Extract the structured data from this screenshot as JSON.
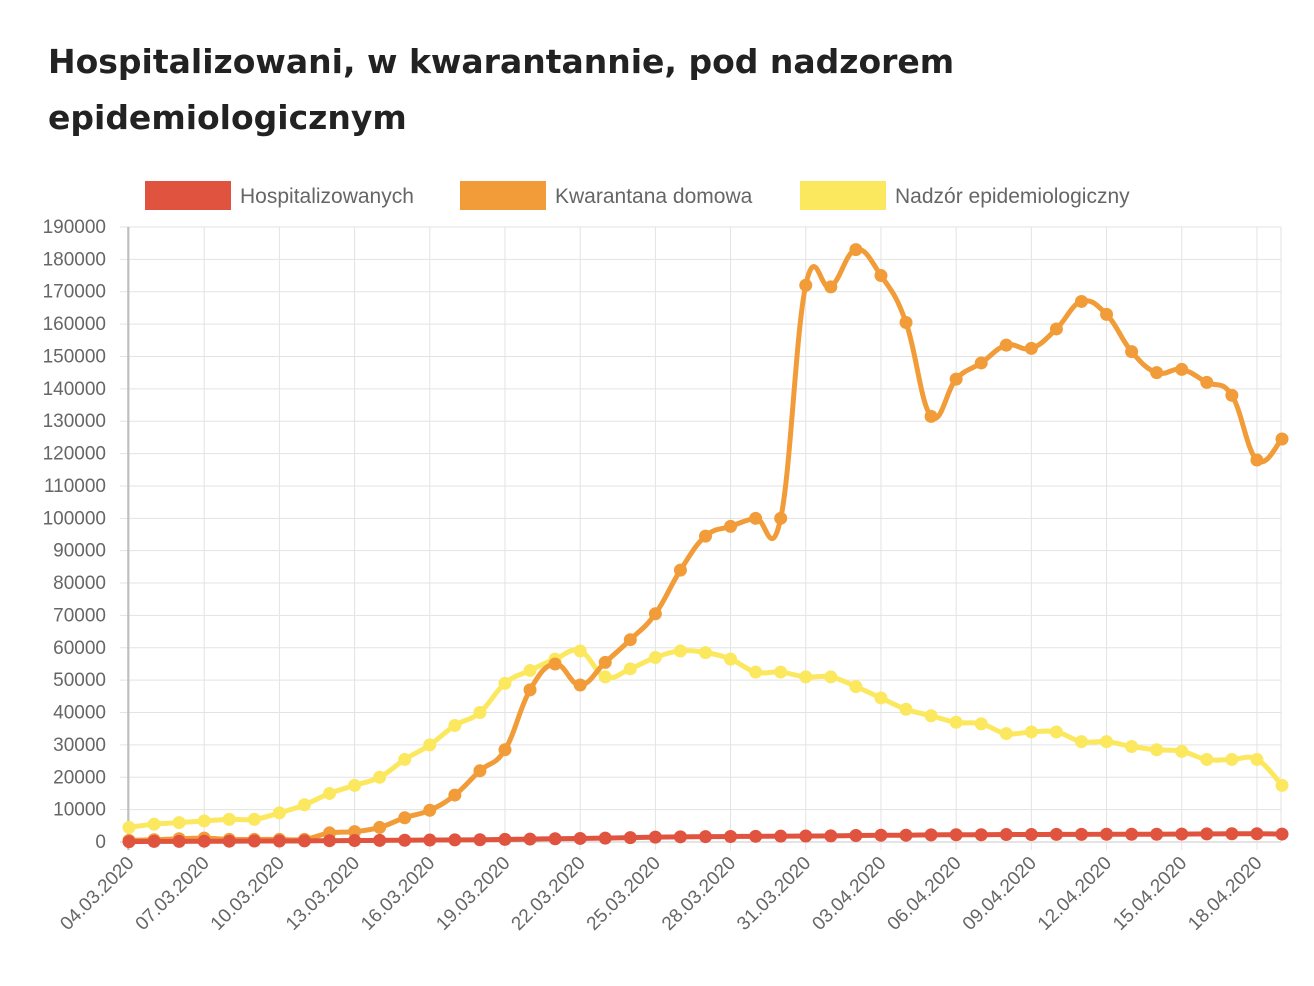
{
  "chart_data": {
    "type": "line",
    "title_lines": [
      "Hospitalizowani, w kwarantannie, pod nadzorem",
      "epidemiologicznym"
    ],
    "legend_position": "top",
    "grid": true,
    "ylim": [
      0,
      190000
    ],
    "y_ticks": [
      0,
      10000,
      20000,
      30000,
      40000,
      50000,
      60000,
      70000,
      80000,
      90000,
      100000,
      110000,
      120000,
      130000,
      140000,
      150000,
      160000,
      170000,
      180000,
      190000
    ],
    "x": [
      "04.03.2020",
      "05.03.2020",
      "06.03.2020",
      "07.03.2020",
      "08.03.2020",
      "09.03.2020",
      "10.03.2020",
      "11.03.2020",
      "12.03.2020",
      "13.03.2020",
      "14.03.2020",
      "15.03.2020",
      "16.03.2020",
      "17.03.2020",
      "18.03.2020",
      "19.03.2020",
      "20.03.2020",
      "21.03.2020",
      "22.03.2020",
      "23.03.2020",
      "24.03.2020",
      "25.03.2020",
      "26.03.2020",
      "27.03.2020",
      "28.03.2020",
      "29.03.2020",
      "30.03.2020",
      "31.03.2020",
      "01.04.2020",
      "02.04.2020",
      "03.04.2020",
      "04.04.2020",
      "05.04.2020",
      "06.04.2020",
      "07.04.2020",
      "08.04.2020",
      "09.04.2020",
      "10.04.2020",
      "11.04.2020",
      "12.04.2020",
      "13.04.2020",
      "14.04.2020",
      "15.04.2020",
      "16.04.2020",
      "17.04.2020",
      "18.04.2020",
      "19.04.2020"
    ],
    "x_tick_labels": [
      "04.03.2020",
      "07.03.2020",
      "10.03.2020",
      "13.03.2020",
      "16.03.2020",
      "19.03.2020",
      "22.03.2020",
      "25.03.2020",
      "28.03.2020",
      "31.03.2020",
      "03.04.2020",
      "06.04.2020",
      "09.04.2020",
      "12.04.2020",
      "15.04.2020",
      "18.04.2020"
    ],
    "series": [
      {
        "name": "Hospitalizowanych",
        "color": "#e0533f",
        "values": [
          100,
          200,
          200,
          250,
          250,
          300,
          300,
          350,
          400,
          450,
          500,
          550,
          600,
          650,
          700,
          800,
          900,
          1000,
          1100,
          1200,
          1350,
          1500,
          1600,
          1650,
          1700,
          1750,
          1800,
          1850,
          1900,
          2000,
          2100,
          2100,
          2200,
          2250,
          2250,
          2300,
          2300,
          2350,
          2350,
          2400,
          2400,
          2400,
          2450,
          2500,
          2550,
          2550,
          2450
        ]
      },
      {
        "name": "Kwarantana domowa",
        "color": "#f19c38",
        "values": [
          500,
          700,
          1000,
          1200,
          800,
          800,
          800,
          800,
          2800,
          3200,
          4500,
          7500,
          9800,
          14500,
          22000,
          28500,
          47000,
          55000,
          48500,
          55500,
          62500,
          70500,
          84000,
          94500,
          97500,
          100000,
          100000,
          172000,
          171500,
          183000,
          175000,
          160500,
          131500,
          143000,
          148000,
          153500,
          152500,
          158500,
          167000,
          163000,
          151500,
          145000,
          146000,
          142000,
          138000,
          118000,
          124500
        ]
      },
      {
        "name": "Nadzór epidemiologiczny",
        "color": "#fbe85f",
        "values": [
          4500,
          5500,
          6000,
          6500,
          7000,
          7000,
          9000,
          11500,
          15000,
          17500,
          20000,
          25500,
          30000,
          36000,
          40000,
          49000,
          53000,
          56500,
          59000,
          51000,
          53500,
          57000,
          59000,
          58500,
          56500,
          52500,
          52500,
          51000,
          51000,
          48000,
          44500,
          41000,
          39000,
          37000,
          36500,
          33500,
          34000,
          34000,
          31000,
          31000,
          29500,
          28500,
          28000,
          25500,
          25500,
          25500,
          17500
        ]
      }
    ]
  }
}
